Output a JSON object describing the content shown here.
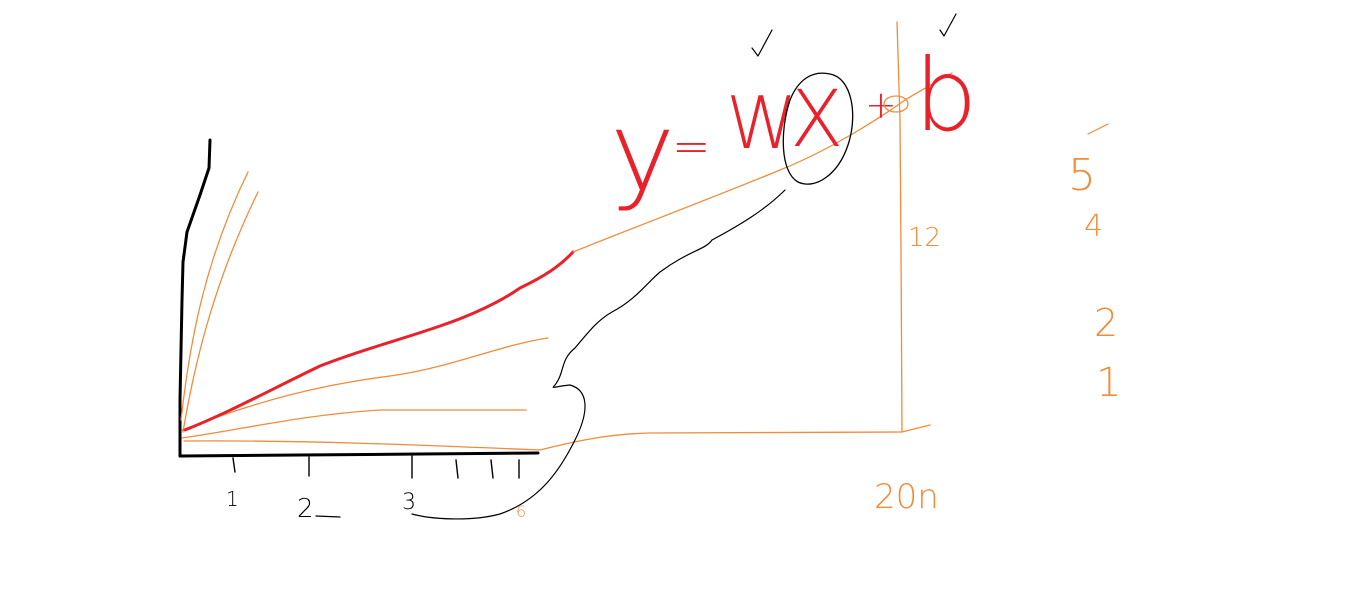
{
  "equation": {
    "y": "y",
    "equals": "=",
    "w": "W",
    "x": "X",
    "plus": "+",
    "b": "b"
  },
  "x_axis_ticks": [
    "1",
    "2",
    "3",
    "6"
  ],
  "right_annotation": {
    "bottom_label": "20n",
    "side_label": "12"
  },
  "side_numbers": [
    "5",
    "4",
    "2",
    "1"
  ],
  "colors": {
    "red": "#e8212a",
    "orange": "#f08c3a",
    "black": "#000000"
  }
}
